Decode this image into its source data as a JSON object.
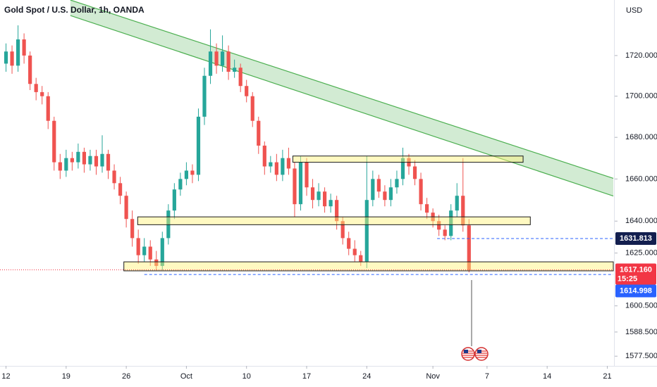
{
  "chart_data": {
    "type": "candlestick",
    "title": "Gold Spot / U.S. Dollar, 1h, OANDA",
    "currency": "USD",
    "log_scale": true,
    "grid": false,
    "up_color": "#26a69a",
    "down_color": "#ef5350",
    "xlim": [
      -1,
      101
    ],
    "xticks": [
      {
        "value": 0,
        "label": "12"
      },
      {
        "value": 10,
        "label": "19"
      },
      {
        "value": 20,
        "label": "26"
      },
      {
        "value": 30,
        "label": "Oct"
      },
      {
        "value": 40,
        "label": "10"
      },
      {
        "value": 50,
        "label": "17"
      },
      {
        "value": 60,
        "label": "24"
      },
      {
        "value": 71,
        "label": "Nov"
      },
      {
        "value": 80,
        "label": "7"
      },
      {
        "value": 90,
        "label": "14"
      },
      {
        "value": 100,
        "label": "21"
      }
    ],
    "ylim": [
      1573.1,
      1747.7
    ],
    "yticks": [
      {
        "value": 1720,
        "label": "1720.000"
      },
      {
        "value": 1700,
        "label": "1700.000"
      },
      {
        "value": 1680,
        "label": "1680.000"
      },
      {
        "value": 1660,
        "label": "1660.000"
      },
      {
        "value": 1640,
        "label": "1640.000"
      },
      {
        "value": 1625,
        "label": "1625.000"
      },
      {
        "value": 1600.5,
        "label": "1600.500"
      },
      {
        "value": 1588.5,
        "label": "1588.500"
      },
      {
        "value": 1577.5,
        "label": "1577.500"
      }
    ],
    "open": [
      1716,
      1722,
      1715,
      1728,
      1720,
      1706,
      1702,
      1700,
      1688,
      1668,
      1664,
      1670,
      1668,
      1673,
      1667,
      1671,
      1666,
      1672,
      1664,
      1658,
      1652,
      1641,
      1632,
      1624,
      1628,
      1622,
      1619,
      1632,
      1645,
      1655,
      1660,
      1664,
      1662,
      1690,
      1710,
      1722,
      1715,
      1722,
      1712,
      1714,
      1705,
      1700,
      1688,
      1676,
      1666,
      1668,
      1662,
      1670,
      1665,
      1648,
      1668,
      1656,
      1650,
      1654,
      1647,
      1650,
      1640,
      1632,
      1627,
      1624,
      1621,
      1650,
      1660,
      1654,
      1650,
      1656,
      1660,
      1670,
      1666,
      1660,
      1648,
      1644,
      1640,
      1636,
      1633,
      1645,
      1652,
      1638
    ],
    "high": [
      1726,
      1725,
      1735,
      1731,
      1722,
      1709,
      1705,
      1702,
      1690,
      1672,
      1674,
      1673,
      1677,
      1675,
      1674,
      1674,
      1681,
      1674,
      1667,
      1661,
      1654,
      1645,
      1636,
      1632,
      1631,
      1626,
      1635,
      1648,
      1658,
      1663,
      1668,
      1667,
      1694,
      1714,
      1733,
      1726,
      1730,
      1725,
      1718,
      1716,
      1708,
      1702,
      1690,
      1678,
      1671,
      1672,
      1674,
      1675,
      1668,
      1671,
      1670,
      1660,
      1658,
      1656,
      1653,
      1652,
      1642,
      1635,
      1631,
      1626,
      1671,
      1664,
      1662,
      1657,
      1660,
      1664,
      1675,
      1672,
      1669,
      1663,
      1651,
      1646,
      1643,
      1638,
      1648,
      1658,
      1670,
      1641
    ],
    "low": [
      1712,
      1711,
      1712,
      1716,
      1703,
      1698,
      1696,
      1684,
      1664,
      1660,
      1661,
      1664,
      1665,
      1663,
      1664,
      1662,
      1663,
      1660,
      1655,
      1648,
      1637,
      1628,
      1620,
      1621,
      1619,
      1617,
      1617,
      1629,
      1641,
      1652,
      1657,
      1658,
      1659,
      1686,
      1706,
      1711,
      1712,
      1708,
      1709,
      1702,
      1697,
      1685,
      1672,
      1662,
      1663,
      1659,
      1659,
      1662,
      1642,
      1645,
      1652,
      1646,
      1647,
      1644,
      1644,
      1636,
      1629,
      1624,
      1621,
      1619,
      1618,
      1647,
      1651,
      1647,
      1647,
      1653,
      1657,
      1662,
      1657,
      1645,
      1641,
      1637,
      1633,
      1631,
      1631,
      1642,
      1635,
      1616
    ],
    "close": [
      1722,
      1715,
      1728,
      1720,
      1706,
      1702,
      1700,
      1688,
      1668,
      1664,
      1670,
      1668,
      1673,
      1667,
      1671,
      1666,
      1672,
      1664,
      1658,
      1652,
      1641,
      1632,
      1624,
      1628,
      1622,
      1619,
      1632,
      1645,
      1655,
      1660,
      1664,
      1662,
      1690,
      1710,
      1722,
      1715,
      1722,
      1712,
      1714,
      1705,
      1700,
      1688,
      1676,
      1666,
      1668,
      1662,
      1670,
      1665,
      1648,
      1668,
      1656,
      1650,
      1654,
      1647,
      1650,
      1640,
      1632,
      1627,
      1624,
      1621,
      1650,
      1660,
      1654,
      1650,
      1656,
      1660,
      1670,
      1666,
      1660,
      1648,
      1644,
      1640,
      1636,
      1633,
      1645,
      1652,
      1638,
      1617
    ],
    "channel": {
      "upper": {
        "x": [
          10.7,
          101
        ],
        "price": [
          1747.7,
          1660.3
        ]
      },
      "lower": {
        "x": [
          10.7,
          101
        ],
        "price": [
          1739.9,
          1651.9
        ]
      },
      "color": "#4caf50"
    },
    "zones": [
      {
        "x": [
          47.7,
          86
        ],
        "price": [
          1668,
          1671
        ]
      },
      {
        "x": [
          21.9,
          87.2
        ],
        "price": [
          1638.3,
          1642
        ]
      },
      {
        "x": [
          19.6,
          101
        ],
        "price": [
          1616.7,
          1620.9
        ]
      }
    ],
    "zone_color": "#fff176",
    "price_lines": [
      {
        "price": 1631.813,
        "x_start": 71.7,
        "color": "#2962ff",
        "tag_color": "#131f4f"
      },
      {
        "price": 1617.16,
        "price_label": "1617.160",
        "countdown": "15:25",
        "x_start": -1,
        "color": "#f23645",
        "tag_color": "#f23645"
      },
      {
        "price": 1614.998,
        "x_start": 23,
        "color": "#2962ff",
        "tag_color": "#2962ff"
      }
    ]
  }
}
